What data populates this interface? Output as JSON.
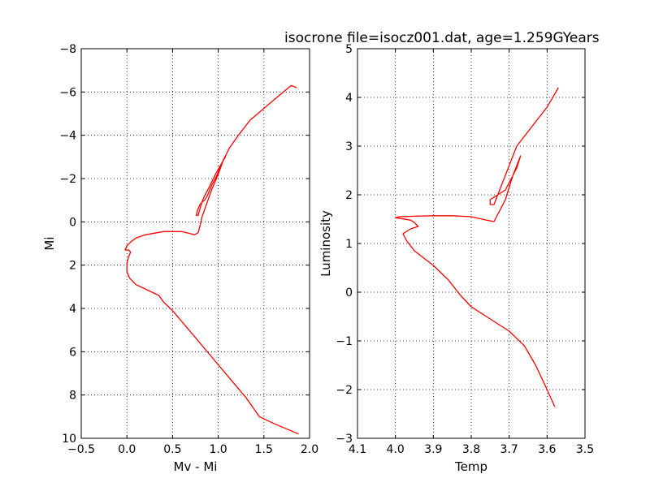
{
  "figure_title": "isocrone file=isocz001.dat, age=1.259GYears",
  "colors": {
    "series": "#ff0000",
    "axes": "#000000",
    "background": "#ffffff"
  },
  "chart_data": [
    {
      "type": "line",
      "xlabel": "Mv - Mi",
      "ylabel": "Mi",
      "xlim": [
        -0.5,
        2.0
      ],
      "ylim": [
        10,
        -8
      ],
      "y_inverted": true,
      "grid": true,
      "xticks": [
        -0.5,
        0.0,
        0.5,
        1.0,
        1.5,
        2.0
      ],
      "xtick_labels": [
        "−0.5",
        "0.0",
        "0.5",
        "1.0",
        "1.5",
        "2.0"
      ],
      "yticks": [
        -8,
        -6,
        -4,
        -2,
        0,
        2,
        4,
        6,
        8,
        10
      ],
      "ytick_labels": [
        "−8",
        "−6",
        "−4",
        "−2",
        "0",
        "2",
        "4",
        "6",
        "8",
        "10"
      ],
      "series": [
        {
          "x": [
            1.86,
            1.8,
            1.6,
            1.35,
            1.22,
            1.12,
            1.05,
            0.98,
            0.93,
            0.88,
            0.85,
            0.82,
            0.8,
            0.77,
            0.76,
            0.78,
            0.8,
            0.82,
            0.85,
            0.9,
            0.97,
            1.05,
            1.08,
            1.06,
            1.0,
            0.93,
            0.87,
            0.82,
            0.8,
            0.78,
            0.74,
            0.7,
            0.6,
            0.4,
            0.2,
            0.1,
            0.05,
            0.0,
            -0.02,
            0.02,
            0.04,
            0.02,
            0.0,
            0.0,
            0.03,
            0.1,
            0.2,
            0.35,
            0.4,
            0.5,
            0.7,
            0.9,
            1.1,
            1.3,
            1.45,
            1.6,
            1.88
          ],
          "y": [
            -6.2,
            -6.3,
            -5.6,
            -4.7,
            -4.0,
            -3.4,
            -2.8,
            -2.1,
            -1.7,
            -1.2,
            -1.0,
            -0.9,
            -0.8,
            -0.5,
            -0.3,
            -0.3,
            -0.6,
            -0.9,
            -1.2,
            -1.6,
            -2.2,
            -2.8,
            -3.0,
            -2.9,
            -2.2,
            -1.5,
            -0.8,
            -0.2,
            0.2,
            0.5,
            0.6,
            0.55,
            0.45,
            0.45,
            0.6,
            0.75,
            0.9,
            1.1,
            1.3,
            1.3,
            1.4,
            1.6,
            1.9,
            2.3,
            2.6,
            2.9,
            3.1,
            3.4,
            3.7,
            4.1,
            5.1,
            6.1,
            7.1,
            8.1,
            9.0,
            9.3,
            9.8
          ]
        }
      ]
    },
    {
      "type": "line",
      "xlabel": "Temp",
      "ylabel": "Luminosity",
      "xlim": [
        4.1,
        3.5
      ],
      "ylim": [
        -3,
        5
      ],
      "x_inverted": true,
      "grid": true,
      "xticks": [
        4.1,
        4.0,
        3.9,
        3.8,
        3.7,
        3.6,
        3.5
      ],
      "xtick_labels": [
        "4.1",
        "4.0",
        "3.9",
        "3.8",
        "3.7",
        "3.6",
        "3.5"
      ],
      "yticks": [
        -3,
        -2,
        -1,
        0,
        1,
        2,
        3,
        4,
        5
      ],
      "ytick_labels": [
        "−3",
        "−2",
        "−1",
        "0",
        "1",
        "2",
        "3",
        "4",
        "5"
      ],
      "series": [
        {
          "x": [
            3.57,
            3.6,
            3.65,
            3.68,
            3.7,
            3.72,
            3.73,
            3.74,
            3.75,
            3.75,
            3.74,
            3.73,
            3.71,
            3.68,
            3.67,
            3.69,
            3.71,
            3.73,
            3.74,
            3.76,
            3.8,
            3.85,
            3.9,
            3.95,
            3.99,
            4.0,
            3.96,
            3.95,
            3.94,
            3.96,
            3.98,
            3.97,
            3.95,
            3.9,
            3.86,
            3.83,
            3.8,
            3.76,
            3.7,
            3.66,
            3.63,
            3.6,
            3.58
          ],
          "y": [
            4.2,
            3.8,
            3.3,
            3.0,
            2.6,
            2.2,
            2.0,
            1.95,
            1.9,
            1.8,
            1.8,
            2.0,
            2.1,
            2.55,
            2.8,
            2.4,
            1.9,
            1.6,
            1.45,
            1.48,
            1.55,
            1.57,
            1.57,
            1.56,
            1.55,
            1.53,
            1.48,
            1.43,
            1.35,
            1.3,
            1.2,
            1.05,
            0.85,
            0.55,
            0.25,
            -0.05,
            -0.3,
            -0.5,
            -0.8,
            -1.1,
            -1.5,
            -2.0,
            -2.35
          ]
        }
      ]
    }
  ]
}
